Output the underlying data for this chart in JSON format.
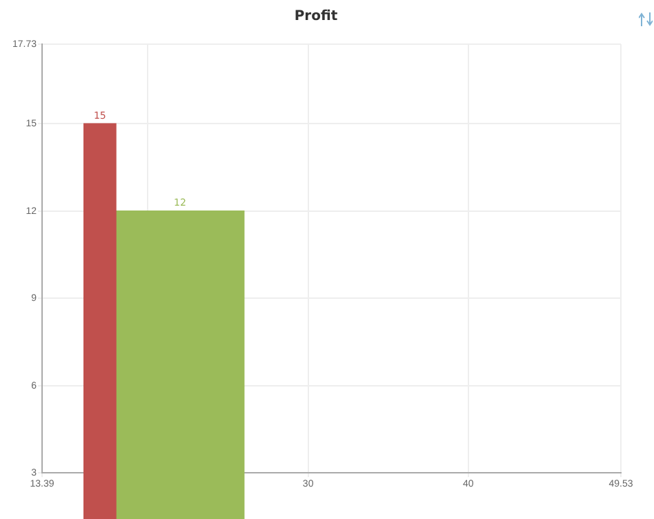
{
  "chart_data": {
    "type": "histogram",
    "title": "Profit",
    "bins": [
      16,
      18,
      26
    ],
    "values": [
      15,
      12
    ],
    "colors": [
      "#c0504d",
      "#9bbb59"
    ],
    "xlim": [
      13.39,
      49.53
    ],
    "xticks": [
      13.39,
      {
        "value": 20,
        "label": null
      },
      30,
      40,
      49.53
    ],
    "ylim": [
      3,
      17.73
    ],
    "yticks": [
      3,
      6,
      9,
      12,
      15,
      17.73
    ],
    "grid": true,
    "data_labels": true
  }
}
